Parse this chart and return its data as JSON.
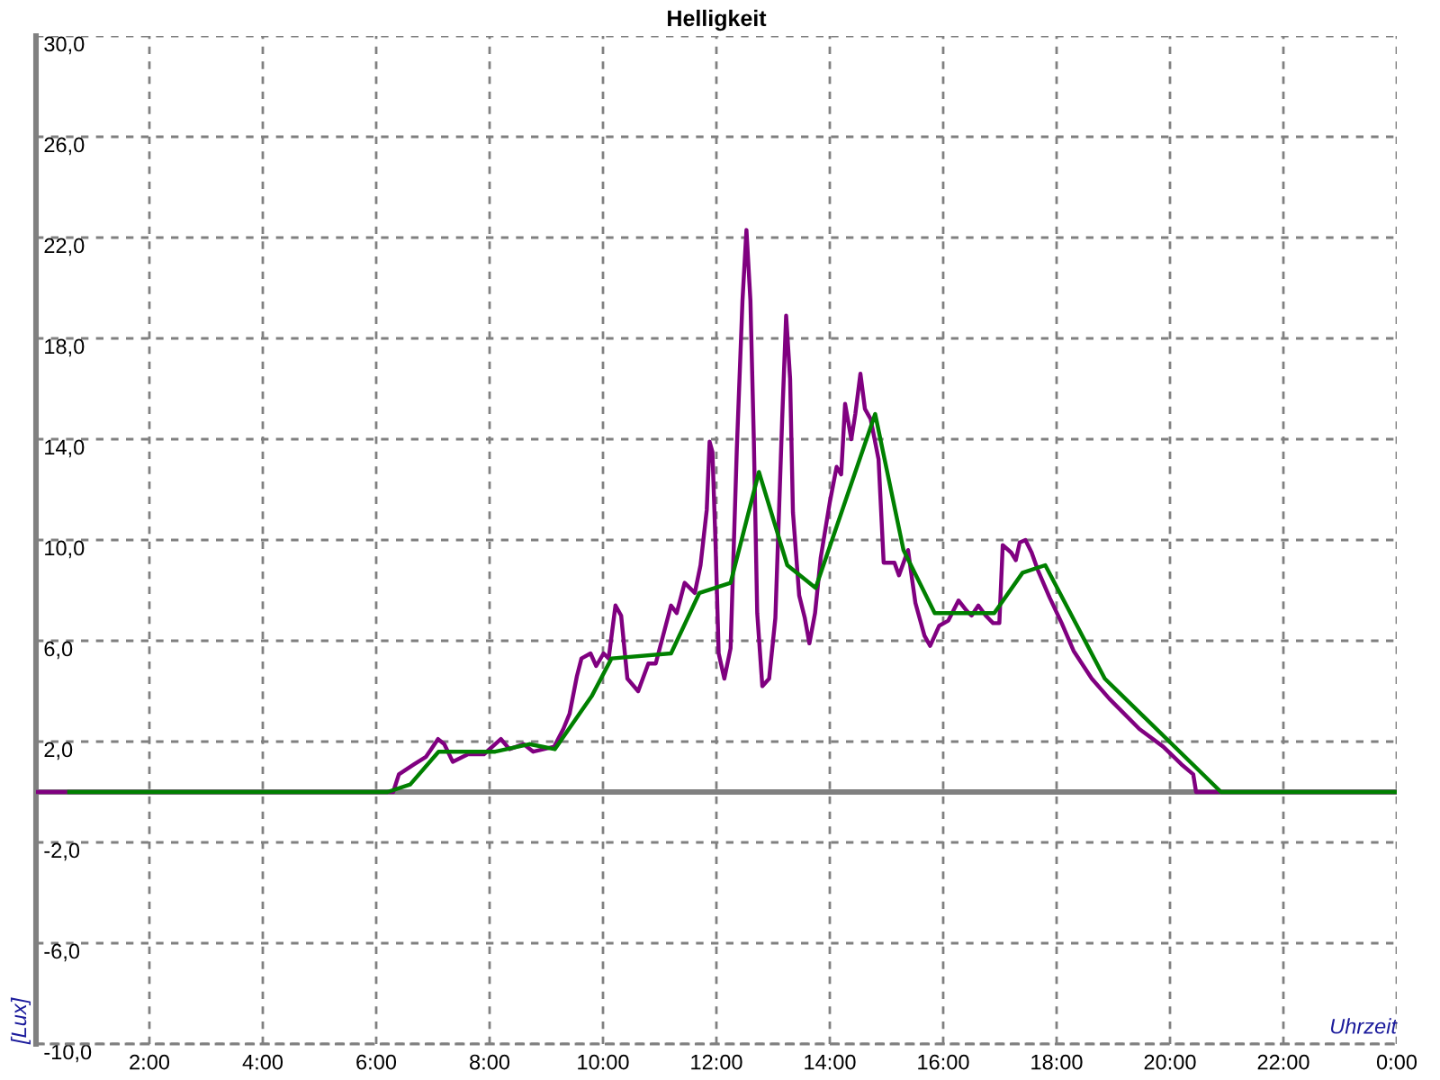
{
  "chart_data": {
    "type": "line",
    "title": "Helligkeit",
    "xlabel": "Uhrzeit",
    "ylabel": "[Lux]",
    "xlim": [
      0,
      24
    ],
    "ylim": [
      -10,
      30
    ],
    "xticks": [
      {
        "value": 2,
        "label": "2:00"
      },
      {
        "value": 4,
        "label": "4:00"
      },
      {
        "value": 6,
        "label": "6:00"
      },
      {
        "value": 8,
        "label": "8:00"
      },
      {
        "value": 10,
        "label": "10:00"
      },
      {
        "value": 12,
        "label": "12:00"
      },
      {
        "value": 14,
        "label": "14:00"
      },
      {
        "value": 16,
        "label": "16:00"
      },
      {
        "value": 18,
        "label": "18:00"
      },
      {
        "value": 20,
        "label": "20:00"
      },
      {
        "value": 22,
        "label": "22:00"
      },
      {
        "value": 24,
        "label": "0:00"
      }
    ],
    "yticks": [
      {
        "value": -10,
        "label": "-10,0"
      },
      {
        "value": -6,
        "label": "-6,0"
      },
      {
        "value": -2,
        "label": "-2,0"
      },
      {
        "value": 2,
        "label": "2,0"
      },
      {
        "value": 6,
        "label": "6,0"
      },
      {
        "value": 10,
        "label": "10,0"
      },
      {
        "value": 14,
        "label": "14,0"
      },
      {
        "value": 18,
        "label": "18,0"
      },
      {
        "value": 22,
        "label": "22,0"
      },
      {
        "value": 26,
        "label": "26,0"
      },
      {
        "value": 30,
        "label": "30,0"
      }
    ],
    "grid": true,
    "ref_lines": [
      {
        "axis": "y",
        "value": 0,
        "color": "#808080"
      }
    ],
    "series": [
      {
        "color": "#800080",
        "x": [
          0,
          6.3,
          6.4,
          6.67,
          6.88,
          7.09,
          7.2,
          7.35,
          7.62,
          7.9,
          8.2,
          8.35,
          8.6,
          8.77,
          9.14,
          9.3,
          9.41,
          9.54,
          9.62,
          9.78,
          9.88,
          10.01,
          10.1,
          10.22,
          10.32,
          10.43,
          10.62,
          10.8,
          10.93,
          11.2,
          11.3,
          11.44,
          11.62,
          11.72,
          11.83,
          11.88,
          11.93,
          11.99,
          12.04,
          12.14,
          12.25,
          12.36,
          12.46,
          12.53,
          12.6,
          12.66,
          12.72,
          12.81,
          12.93,
          13.04,
          13.16,
          13.23,
          13.3,
          13.35,
          13.46,
          13.56,
          13.64,
          13.74,
          13.84,
          14.0,
          14.12,
          14.2,
          14.27,
          14.38,
          14.45,
          14.54,
          14.62,
          14.72,
          14.86,
          14.95,
          15.14,
          15.22,
          15.38,
          15.46,
          15.51,
          15.67,
          15.77,
          15.93,
          16.09,
          16.27,
          16.41,
          16.5,
          16.62,
          16.75,
          16.88,
          16.99,
          17.05,
          17.2,
          17.28,
          17.35,
          17.45,
          17.56,
          17.67,
          17.88,
          18.09,
          18.3,
          18.62,
          18.93,
          19.46,
          19.88,
          20.2,
          20.41,
          20.46,
          24
        ],
        "values": [
          0,
          0,
          0.7,
          1.1,
          1.4,
          2.1,
          1.9,
          1.2,
          1.5,
          1.5,
          2.1,
          1.7,
          1.9,
          1.6,
          1.8,
          2.5,
          3.1,
          4.6,
          5.3,
          5.5,
          5.0,
          5.5,
          5.3,
          7.4,
          7.0,
          4.5,
          4.0,
          5.1,
          5.1,
          7.4,
          7.1,
          8.3,
          7.9,
          9.0,
          11.2,
          13.9,
          13.5,
          9.5,
          5.5,
          4.5,
          5.7,
          13.6,
          19.5,
          22.3,
          19.5,
          14.0,
          7.1,
          4.2,
          4.5,
          6.9,
          14.8,
          18.9,
          16.4,
          11.1,
          7.8,
          6.9,
          5.9,
          7.1,
          9.3,
          11.5,
          12.9,
          12.6,
          15.4,
          14.0,
          15.0,
          16.6,
          15.2,
          14.8,
          13.2,
          9.1,
          9.1,
          8.6,
          9.6,
          8.3,
          7.5,
          6.2,
          5.8,
          6.6,
          6.8,
          7.6,
          7.2,
          7.0,
          7.4,
          7.0,
          6.7,
          6.7,
          9.8,
          9.5,
          9.2,
          9.9,
          10.0,
          9.5,
          8.8,
          7.7,
          6.7,
          5.6,
          4.5,
          3.7,
          2.5,
          1.8,
          1.1,
          0.7,
          0,
          0
        ]
      },
      {
        "color": "#008000",
        "x": [
          0.55,
          6.2,
          6.6,
          7.1,
          8.1,
          8.7,
          9.15,
          9.8,
          10.15,
          11.2,
          11.7,
          12.25,
          12.75,
          13.25,
          13.75,
          14.8,
          15.3,
          15.85,
          16.9,
          17.4,
          17.8,
          18.85,
          20.9,
          24
        ],
        "values": [
          0,
          0,
          0.3,
          1.6,
          1.6,
          1.9,
          1.7,
          3.8,
          5.3,
          5.5,
          7.9,
          8.3,
          12.7,
          9.0,
          8.1,
          15.0,
          9.6,
          7.1,
          7.1,
          8.7,
          9.0,
          4.5,
          0,
          0
        ]
      }
    ]
  }
}
